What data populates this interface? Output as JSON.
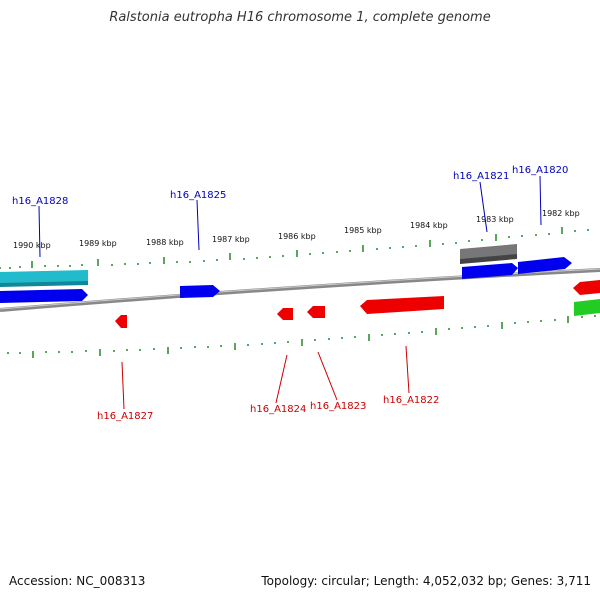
{
  "title": "Ralstonia eutropha H16 chromosome 1, complete genome",
  "footer": {
    "accession": "Accession: NC_008313",
    "summary": "Topology: circular; Length: 4,052,032 bp; Genes: 3,711"
  },
  "scale_labels": [
    "1990 kbp",
    "1989 kbp",
    "1988 kbp",
    "1987 kbp",
    "1986 kbp",
    "1985 kbp",
    "1984 kbp",
    "1983 kbp",
    "1982 kbp"
  ],
  "gene_labels": {
    "forward": [
      "h16_A1828",
      "h16_A1825",
      "h16_A1821",
      "h16_A1820"
    ],
    "reverse": [
      "h16_A1827",
      "h16_A1824",
      "h16_A1823",
      "h16_A1822"
    ]
  },
  "colors": {
    "forward_label": "#0000bb",
    "reverse_label": "#cc0000",
    "backbone": "#888888",
    "ticks": "#228822",
    "blue_gene": "#0000ee",
    "red_gene": "#ee0000",
    "cyan_gene": "#22bbcc",
    "gray_gene": "#777777",
    "green_gene": "#22cc22"
  }
}
